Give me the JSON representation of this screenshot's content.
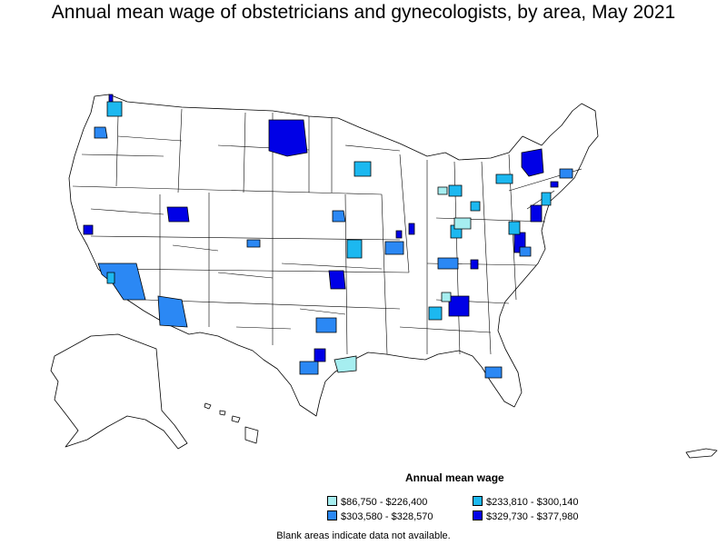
{
  "title": "Annual mean wage of obstetricians and gynecologists, by area, May 2021",
  "legend": {
    "title": "Annual mean wage",
    "items": [
      {
        "label": "$86,750 - $226,400",
        "color": "#a6eef0"
      },
      {
        "label": "$233,810 - $300,140",
        "color": "#1cb8f0"
      },
      {
        "label": "$303,580 - $328,570",
        "color": "#2b88f4"
      },
      {
        "label": "$329,730 - $377,980",
        "color": "#0000e6"
      }
    ]
  },
  "footnote": "Blank areas indicate data not available."
}
